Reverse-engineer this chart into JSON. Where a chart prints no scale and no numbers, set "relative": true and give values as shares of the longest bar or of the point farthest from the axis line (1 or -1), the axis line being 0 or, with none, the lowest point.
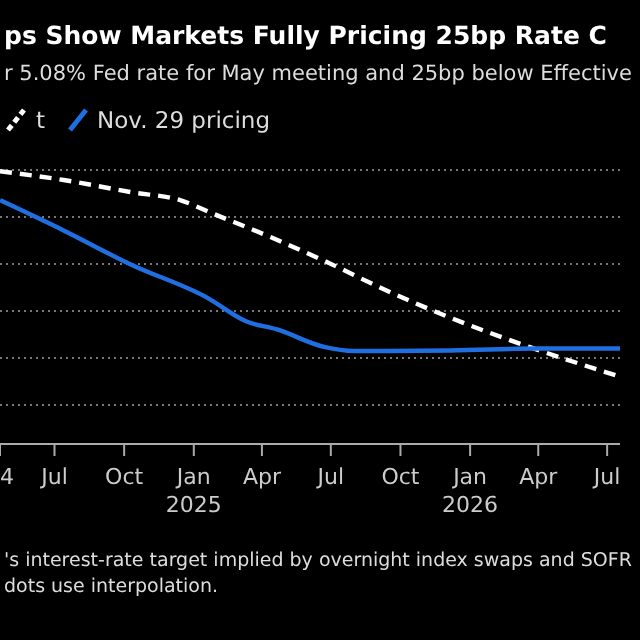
{
  "chart_data": {
    "type": "line",
    "title": "ps Show Markets Fully Pricing 25bp Rate C",
    "subtitle": "r 5.08% Fed rate for May meeting and 25bp below Effective",
    "relative": true,
    "legend": "top left",
    "grid": "y",
    "xlim": [
      "2024-04-20",
      "2026-07-18"
    ],
    "xticks": [
      {
        "value": "2024-04-20",
        "label": "4"
      },
      {
        "value": "2024-07-01",
        "label": "Jul"
      },
      {
        "value": "2024-10-01",
        "label": "Oct"
      },
      {
        "value": "2025-01-01",
        "label": "Jan\n2025"
      },
      {
        "value": "2025-04-01",
        "label": "Apr"
      },
      {
        "value": "2025-07-01",
        "label": "Jul"
      },
      {
        "value": "2025-10-01",
        "label": "Oct"
      },
      {
        "value": "2026-01-01",
        "label": "Jan\n2026"
      },
      {
        "value": "2026-04-01",
        "label": "Apr"
      },
      {
        "value": "2026-07-01",
        "label": "Jul"
      }
    ],
    "series": [
      {
        "name": "t",
        "color": "#ffffff",
        "line_style": "dashed",
        "x": [
          "2024-04-20",
          "2024-07-13",
          "2024-10-09",
          "2024-12-14",
          "2025-01-27",
          "2025-04-13",
          "2025-06-22",
          "2025-09-14",
          "2025-12-07",
          "2026-03-20",
          "2026-07-18"
        ],
        "values": [
          1.0,
          0.968,
          0.924,
          0.894,
          0.844,
          0.758,
          0.672,
          0.561,
          0.462,
          0.356,
          0.247
        ]
      },
      {
        "name": "Nov. 29 pricing",
        "color": "#1f6fe0",
        "line_style": "solid",
        "x": [
          "2024-04-20",
          "2024-07-13",
          "2024-10-09",
          "2025-01-19",
          "2025-03-11",
          "2025-04-21",
          "2025-06-22",
          "2025-08-01",
          "2025-12-07",
          "2026-03-30",
          "2026-07-18"
        ],
        "values": [
          0.894,
          0.783,
          0.659,
          0.536,
          0.45,
          0.42,
          0.356,
          0.341,
          0.343,
          0.35,
          0.35
        ]
      }
    ],
    "annotations": [
      "'s interest-rate target implied by overnight index swaps and SOFR",
      "dots use interpolation."
    ]
  }
}
